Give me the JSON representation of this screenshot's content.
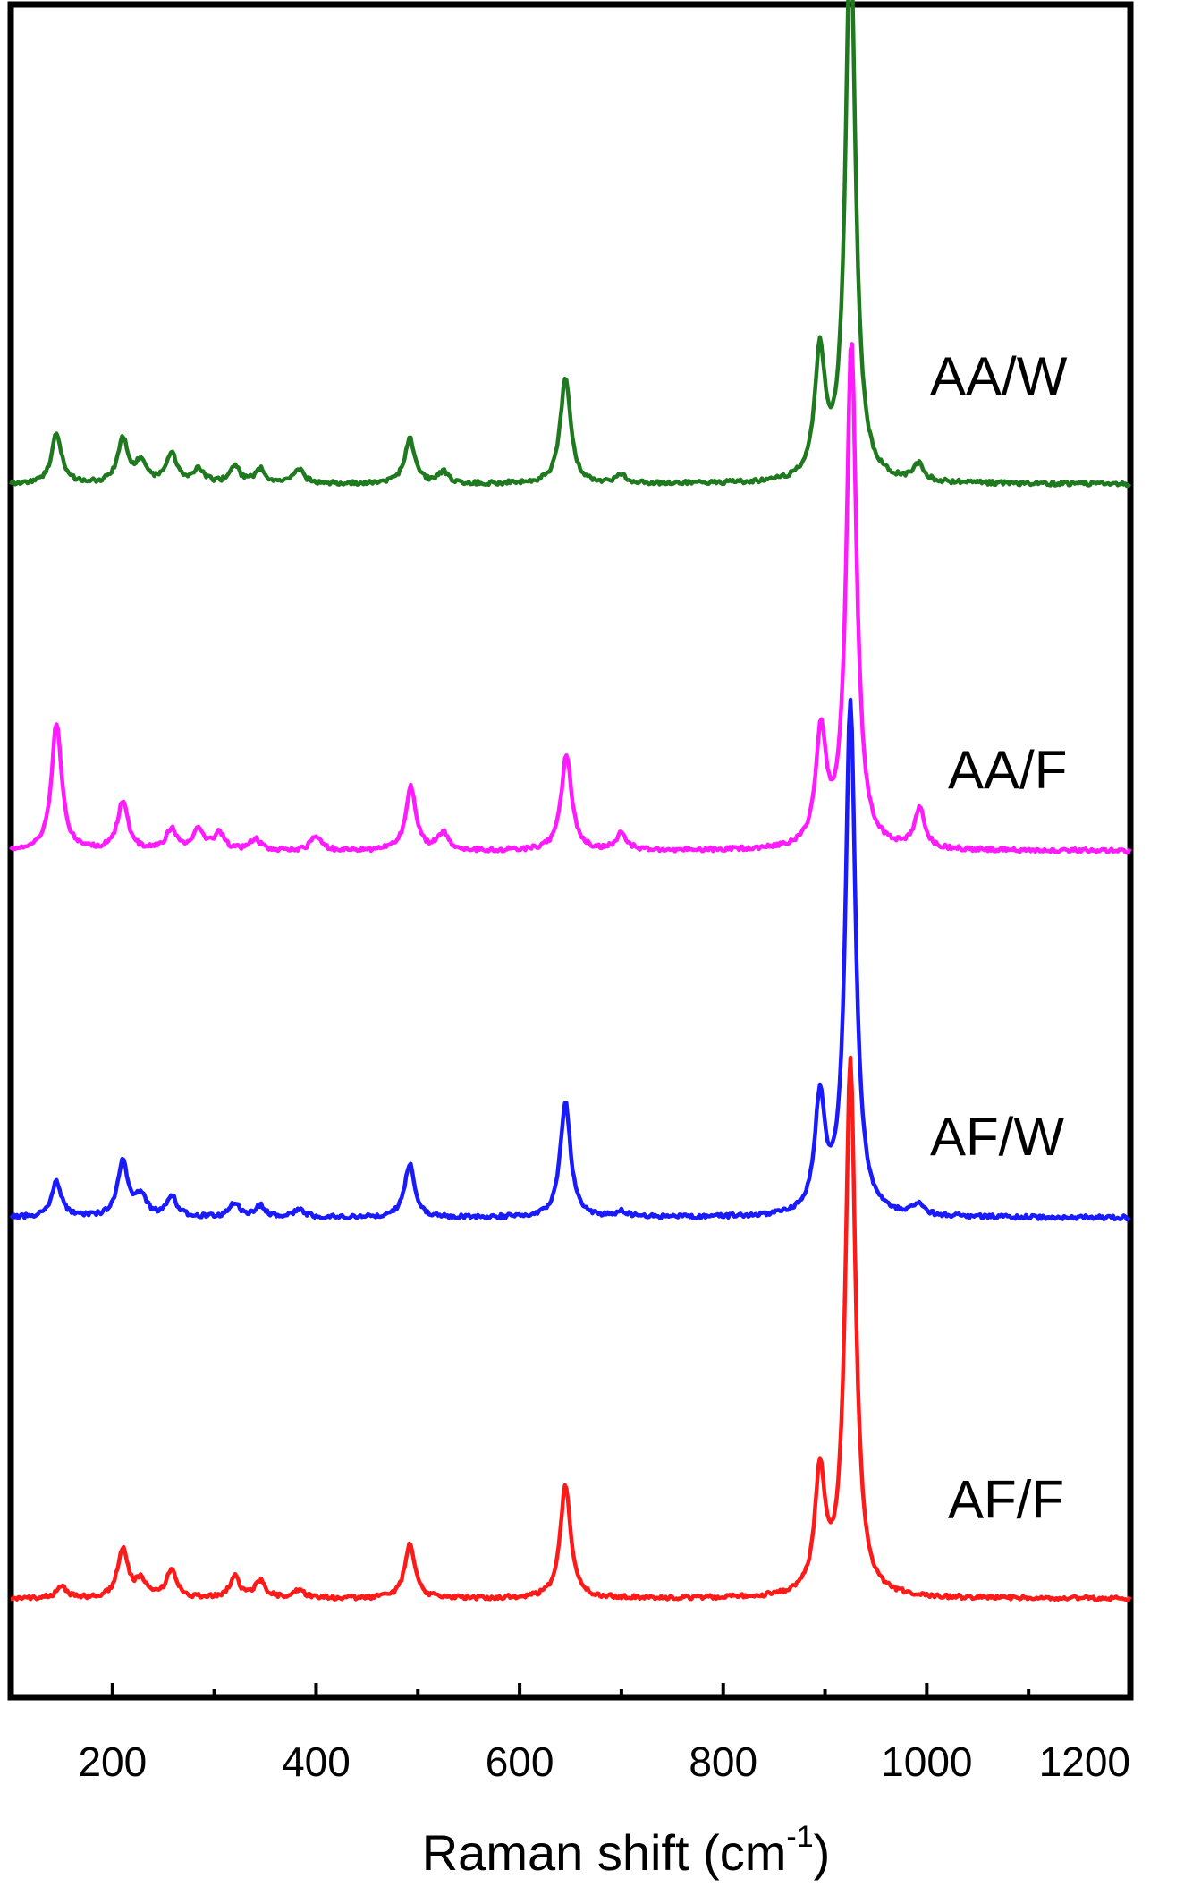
{
  "chart_data": {
    "type": "line",
    "xlabel_main": "Raman shift (cm",
    "xlabel_sup": "-1",
    "xlabel_close": ")",
    "ylabel": "",
    "xlim": [
      100,
      1200
    ],
    "ylim": [
      0,
      12
    ],
    "xticks": [
      200,
      400,
      600,
      800,
      1000,
      1200
    ],
    "grid": false,
    "legend": "inline-right",
    "peak_width": 6,
    "series": [
      {
        "name": "AA/W",
        "color": "#1f7a1f",
        "baseline": 8.6,
        "peaks": [
          [
            145,
            0.35
          ],
          [
            210,
            0.32
          ],
          [
            228,
            0.15
          ],
          [
            258,
            0.22
          ],
          [
            285,
            0.1
          ],
          [
            320,
            0.12
          ],
          [
            345,
            0.1
          ],
          [
            383,
            0.1
          ],
          [
            492,
            0.32
          ],
          [
            525,
            0.08
          ],
          [
            645,
            0.75
          ],
          [
            700,
            0.06
          ],
          [
            895,
            0.88
          ],
          [
            925,
            3.9
          ],
          [
            992,
            0.12
          ]
        ]
      },
      {
        "name": "AA/F",
        "color": "#ff1aff",
        "baseline": 6.0,
        "peaks": [
          [
            145,
            0.9
          ],
          [
            210,
            0.35
          ],
          [
            258,
            0.15
          ],
          [
            285,
            0.15
          ],
          [
            305,
            0.12
          ],
          [
            340,
            0.08
          ],
          [
            400,
            0.1
          ],
          [
            493,
            0.45
          ],
          [
            525,
            0.12
          ],
          [
            646,
            0.68
          ],
          [
            700,
            0.12
          ],
          [
            896,
            0.8
          ],
          [
            926,
            3.6
          ],
          [
            993,
            0.28
          ]
        ]
      },
      {
        "name": "AF/W",
        "color": "#1a1aff",
        "baseline": 3.4,
        "peaks": [
          [
            145,
            0.25
          ],
          [
            210,
            0.4
          ],
          [
            228,
            0.15
          ],
          [
            258,
            0.15
          ],
          [
            320,
            0.1
          ],
          [
            345,
            0.08
          ],
          [
            383,
            0.06
          ],
          [
            492,
            0.38
          ],
          [
            645,
            0.82
          ],
          [
            700,
            0.04
          ],
          [
            895,
            0.8
          ],
          [
            925,
            3.65
          ],
          [
            992,
            0.08
          ]
        ]
      },
      {
        "name": "AF/F",
        "color": "#ff1a1a",
        "baseline": 0.7,
        "peaks": [
          [
            150,
            0.08
          ],
          [
            210,
            0.35
          ],
          [
            228,
            0.12
          ],
          [
            258,
            0.2
          ],
          [
            320,
            0.15
          ],
          [
            345,
            0.12
          ],
          [
            383,
            0.06
          ],
          [
            492,
            0.38
          ],
          [
            645,
            0.8
          ],
          [
            895,
            0.85
          ],
          [
            925,
            3.8
          ]
        ]
      }
    ]
  }
}
